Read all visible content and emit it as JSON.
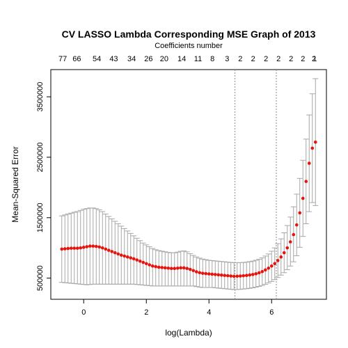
{
  "chart_data": {
    "type": "scatter",
    "title": "CV LASSO Lambda Corresponding MSE Graph of 2013",
    "top_axis_title": "Coefficients number",
    "xlabel": "log(Lambda)",
    "ylabel": "Mean-Squared Error",
    "xlim": [
      -1.05,
      7.75
    ],
    "ylim": [
      150000,
      3950000
    ],
    "x_ticks": [
      0,
      2,
      4,
      6
    ],
    "y_ticks": [
      500000,
      1500000,
      2500000,
      3500000
    ],
    "top_tick_labels": [
      "77",
      "66",
      "54",
      "43",
      "34",
      "26",
      "20",
      "14",
      "11",
      "8",
      "3",
      "2",
      "2",
      "2",
      "2",
      "2",
      "2",
      "2",
      "1"
    ],
    "top_ticks_x": [
      -0.67,
      -0.22,
      0.42,
      0.96,
      1.53,
      2.07,
      2.57,
      3.13,
      3.65,
      4.11,
      4.58,
      5.0,
      5.41,
      5.82,
      6.22,
      6.62,
      7.0,
      7.35,
      7.38
    ],
    "lambda_min_log": 4.83,
    "lambda_1se_log": 6.15,
    "point_color": "#e8120c",
    "errorbar_color": "#a6a6a6",
    "reference_line_color": "#8a8a8a",
    "series": [
      {
        "x": [
          -0.7,
          -0.6,
          -0.5,
          -0.4,
          -0.3,
          -0.2,
          -0.1,
          0.0,
          0.1,
          0.2,
          0.3,
          0.4,
          0.5,
          0.6,
          0.7,
          0.8,
          0.9,
          1.0,
          1.1,
          1.2,
          1.3,
          1.4,
          1.5,
          1.6,
          1.7,
          1.8,
          1.9,
          2.0,
          2.1,
          2.2,
          2.3,
          2.4,
          2.5,
          2.6,
          2.7,
          2.8,
          2.9,
          3.0,
          3.1,
          3.2,
          3.3,
          3.4,
          3.5,
          3.6,
          3.7,
          3.8,
          3.9,
          4.0,
          4.1,
          4.2,
          4.3,
          4.4,
          4.5,
          4.6,
          4.7,
          4.8,
          4.9,
          5.0,
          5.1,
          5.2,
          5.3,
          5.4,
          5.5,
          5.6,
          5.7,
          5.8,
          5.9,
          6.0,
          6.1,
          6.2,
          6.3,
          6.4,
          6.5,
          6.6,
          6.7,
          6.8,
          6.9,
          7.0,
          7.1,
          7.2,
          7.3,
          7.4
        ],
        "y": [
          980000,
          985000,
          990000,
          995000,
          995000,
          995000,
          1000000,
          1010000,
          1020000,
          1030000,
          1030000,
          1025000,
          1015000,
          1000000,
          980000,
          960000,
          940000,
          920000,
          900000,
          880000,
          865000,
          850000,
          835000,
          820000,
          800000,
          780000,
          760000,
          740000,
          720000,
          700000,
          690000,
          680000,
          675000,
          670000,
          665000,
          660000,
          660000,
          665000,
          670000,
          670000,
          660000,
          645000,
          625000,
          605000,
          590000,
          580000,
          575000,
          570000,
          565000,
          560000,
          555000,
          550000,
          545000,
          540000,
          535000,
          530000,
          532000,
          535000,
          540000,
          545000,
          552000,
          560000,
          572000,
          588000,
          608000,
          635000,
          665000,
          700000,
          740000,
          790000,
          850000,
          920000,
          1000000,
          1100000,
          1220000,
          1380000,
          1580000,
          1820000,
          2100000,
          2400000,
          2650000,
          2750000
        ],
        "upper": [
          1530000,
          1545000,
          1560000,
          1575000,
          1590000,
          1600000,
          1620000,
          1640000,
          1650000,
          1660000,
          1660000,
          1650000,
          1630000,
          1600000,
          1560000,
          1520000,
          1480000,
          1440000,
          1400000,
          1360000,
          1320000,
          1280000,
          1240000,
          1200000,
          1160000,
          1120000,
          1080000,
          1050000,
          1020000,
          990000,
          970000,
          955000,
          945000,
          935000,
          925000,
          920000,
          920000,
          930000,
          945000,
          950000,
          935000,
          905000,
          875000,
          850000,
          830000,
          815000,
          805000,
          795000,
          790000,
          785000,
          780000,
          775000,
          770000,
          765000,
          760000,
          755000,
          755000,
          757000,
          760000,
          765000,
          772000,
          782000,
          795000,
          812000,
          835000,
          865000,
          900000,
          945000,
          1000000,
          1070000,
          1150000,
          1250000,
          1370000,
          1510000,
          1680000,
          1890000,
          2150000,
          2450000,
          2800000,
          3200000,
          3550000,
          3800000
        ],
        "lower": [
          430000,
          425000,
          420000,
          415000,
          410000,
          405000,
          400000,
          395000,
          390000,
          395000,
          400000,
          400000,
          400000,
          400000,
          400000,
          400000,
          400000,
          400000,
          400000,
          400000,
          400000,
          400000,
          400000,
          400000,
          395000,
          390000,
          385000,
          380000,
          375000,
          370000,
          370000,
          370000,
          370000,
          370000,
          370000,
          370000,
          370000,
          370000,
          370000,
          370000,
          370000,
          370000,
          370000,
          360000,
          350000,
          345000,
          345000,
          345000,
          345000,
          340000,
          335000,
          330000,
          325000,
          320000,
          315000,
          310000,
          312000,
          315000,
          320000,
          325000,
          332000,
          340000,
          350000,
          362000,
          378000,
          398000,
          420000,
          445000,
          475000,
          510000,
          550000,
          590000,
          640000,
          700000,
          770000,
          870000,
          1010000,
          1190000,
          1400000,
          1600000,
          1750000,
          1700000
        ]
      }
    ]
  }
}
